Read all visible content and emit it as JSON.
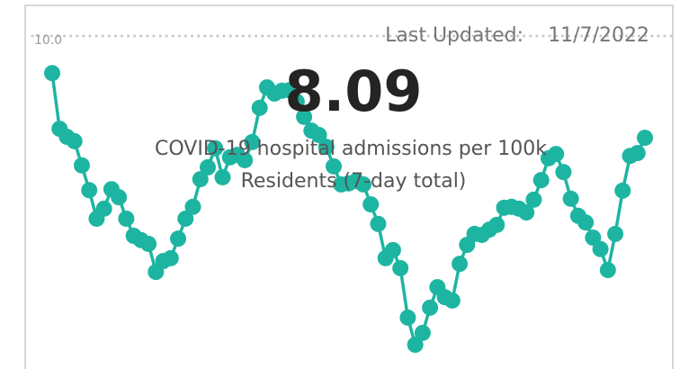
{
  "chart_data": {
    "type": "line",
    "last_updated_label": "Last Updated:",
    "last_updated": "11/7/2022",
    "kpi": "8.09",
    "subtitle": [
      "COVID-19 hospital admissions per 100k",
      "Residents (7-day total)"
    ],
    "color": "#1db5a1",
    "ylim": [
      3,
      10
    ],
    "yticks": [
      {
        "value": 10,
        "label": "10.0"
      }
    ],
    "values": [
      9.22,
      8.05,
      7.88,
      7.79,
      7.28,
      6.76,
      6.16,
      6.37,
      6.78,
      6.61,
      6.16,
      5.8,
      5.71,
      5.63,
      5.04,
      5.27,
      5.33,
      5.74,
      6.16,
      6.41,
      6.99,
      7.24,
      7.64,
      7.03,
      7.45,
      7.5,
      7.39,
      7.77,
      8.49,
      8.92,
      8.79,
      8.85,
      8.86,
      8.62,
      8.3,
      8.01,
      7.92,
      7.67,
      7.26,
      6.88,
      6.9,
      6.95,
      6.88,
      6.46,
      6.05,
      5.33,
      5.5,
      5.12,
      4.08,
      3.51,
      3.76,
      4.29,
      4.72,
      4.51,
      4.44,
      5.21,
      5.61,
      5.84,
      5.82,
      5.93,
      6.03,
      6.39,
      6.41,
      6.37,
      6.29,
      6.56,
      6.97,
      7.43,
      7.52,
      7.14,
      6.58,
      6.22,
      6.08,
      5.76,
      5.52,
      5.08,
      5.84,
      6.75,
      7.48,
      7.54,
      7.86
    ]
  }
}
